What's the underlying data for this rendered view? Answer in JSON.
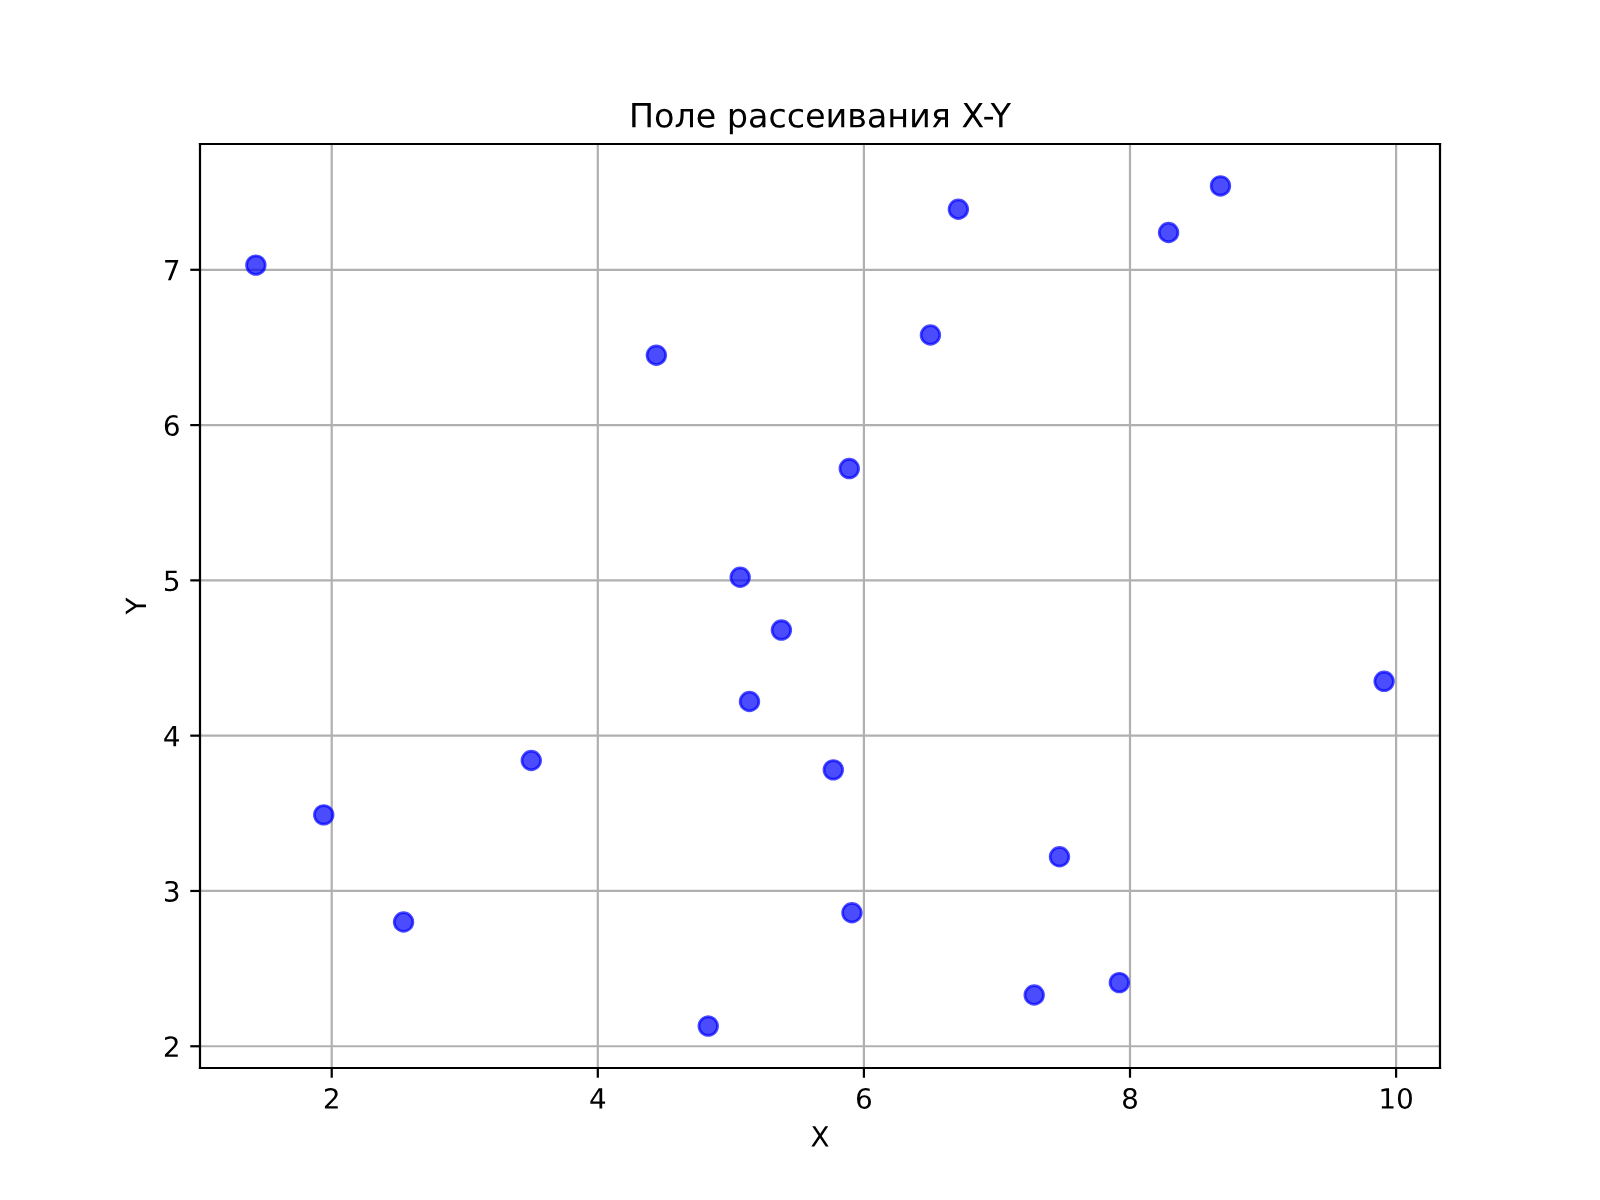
{
  "chart_data": {
    "type": "scatter",
    "title": "Поле рассеивания X-Y",
    "xlabel": "X",
    "ylabel": "Y",
    "x": [
      1.43,
      1.94,
      2.54,
      3.5,
      4.44,
      4.83,
      5.07,
      5.14,
      5.38,
      5.77,
      5.89,
      5.91,
      6.5,
      6.71,
      7.28,
      7.47,
      7.92,
      8.29,
      8.68,
      9.91
    ],
    "series": [
      {
        "color": "#0000ff",
        "values": [
          7.03,
          3.49,
          2.8,
          3.84,
          6.45,
          2.13,
          5.02,
          4.22,
          4.68,
          3.78,
          5.72,
          2.86,
          6.58,
          7.39,
          2.33,
          3.22,
          2.41,
          7.24,
          7.54,
          4.35
        ]
      }
    ],
    "xlim": [
      1.01,
      10.33
    ],
    "ylim": [
      1.86,
      7.81
    ],
    "xticks": [
      2,
      4,
      6,
      8,
      10
    ],
    "yticks": [
      2,
      3,
      4,
      5,
      6,
      7
    ],
    "grid": true,
    "marker": "circle",
    "legend": false
  }
}
